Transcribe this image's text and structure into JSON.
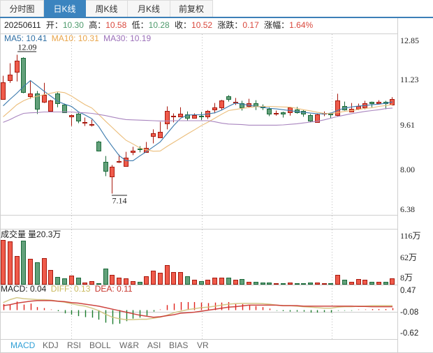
{
  "tabs": [
    {
      "label": "分时图",
      "active": false
    },
    {
      "label": "日K线",
      "active": true
    },
    {
      "label": "周K线",
      "active": false
    },
    {
      "label": "月K线",
      "active": false
    },
    {
      "label": "前复权",
      "active": false
    }
  ],
  "info": {
    "date": "20250611",
    "open": {
      "label": "开：",
      "value": "10.30",
      "color": "#4e9a6c"
    },
    "high": {
      "label": "高：",
      "value": "10.58",
      "color": "#d9473c"
    },
    "low": {
      "label": "低：",
      "value": "10.28",
      "color": "#4e9a6c"
    },
    "close": {
      "label": "收：",
      "value": "10.52",
      "color": "#d9473c"
    },
    "change": {
      "label": "涨跌：",
      "value": "0.17",
      "color": "#d9473c"
    },
    "change_pct": {
      "label": "涨幅：",
      "value": "1.64%",
      "color": "#d9473c"
    }
  },
  "ma_legend": [
    {
      "label": "MA5: 10.41",
      "color": "#2e6ea3"
    },
    {
      "label": "MA10: 10.31",
      "color": "#e9a54a"
    },
    {
      "label": "MA30: 10.19",
      "color": "#9a6fb8"
    }
  ],
  "price_axis": [
    "12.85",
    "11.23",
    "9.61",
    "8.00",
    "6.38"
  ],
  "volume_panel": {
    "title": "成交量",
    "value_label": "量20.3万",
    "axis": [
      "116万",
      "62万",
      "8万"
    ]
  },
  "macd_panel": {
    "macd": {
      "label": "MACD: 0.04",
      "color": "#222222"
    },
    "diff": {
      "label": "DIFF: 0.13",
      "color": "#c9b95c"
    },
    "dea": {
      "label": "DEA: 0.11",
      "color": "#c7352c"
    },
    "axis": [
      "0.47",
      "-0.08",
      "-0.62"
    ]
  },
  "indicator_tabs": [
    {
      "label": "MACD",
      "active": true
    },
    {
      "label": "KDJ",
      "active": false
    },
    {
      "label": "RSI",
      "active": false
    },
    {
      "label": "BOLL",
      "active": false
    },
    {
      "label": "W&R",
      "active": false
    },
    {
      "label": "ASI",
      "active": false
    },
    {
      "label": "BIAS",
      "active": false
    },
    {
      "label": "VR",
      "active": false
    }
  ],
  "colors": {
    "up_fill": "#ef5b4b",
    "up_stroke": "#a8190e",
    "down_fill": "#62a07a",
    "down_stroke": "#1b6a3a",
    "ma5": "#3a79ad",
    "ma10": "#ebbd7a",
    "ma30": "#a985bf",
    "diff": "#cfc27b",
    "dea": "#c9302a",
    "macd_up": "#e0231c",
    "macd_down": "#1d7d2e",
    "macd_up_light": "#f0a29c",
    "macd_down_light": "#9ccba5",
    "grid": "#bdbdbd",
    "frame": "#cfcfcf",
    "tab_line": "#3c7fb7",
    "marker_text": "#222222"
  },
  "chart_data": [
    {
      "type": "candlestick",
      "title": "日K线",
      "xlabel": "",
      "ylabel": "",
      "ylim": [
        6.38,
        12.85
      ],
      "yticks": [
        12.85,
        11.23,
        9.61,
        8.0,
        6.38
      ],
      "grid": false,
      "legend": [
        "MA5: 10.41",
        "MA10: 10.31",
        "MA30: 10.19"
      ],
      "ohlc_fields": [
        "open",
        "high",
        "low",
        "close"
      ],
      "ohlc": [
        [
          10.52,
          11.34,
          10.5,
          11.1
        ],
        [
          11.19,
          11.79,
          11.09,
          11.39
        ],
        [
          11.47,
          12.09,
          11.14,
          11.87
        ],
        [
          11.97,
          12.0,
          10.72,
          10.75
        ],
        [
          10.6,
          11.17,
          10.52,
          10.7
        ],
        [
          10.72,
          10.8,
          9.98,
          10.17
        ],
        [
          10.4,
          11.09,
          10.37,
          10.65
        ],
        [
          10.1,
          10.48,
          10.08,
          10.47
        ],
        [
          10.72,
          10.75,
          10.22,
          10.35
        ],
        [
          10.32,
          10.35,
          10.02,
          10.05
        ],
        [
          9.88,
          9.96,
          9.55,
          9.95
        ],
        [
          10.0,
          10.02,
          9.65,
          9.73
        ],
        [
          9.67,
          9.85,
          9.55,
          9.69
        ],
        [
          9.58,
          9.78,
          9.53,
          9.61
        ],
        [
          9.0,
          9.02,
          8.64,
          8.66
        ],
        [
          8.26,
          8.48,
          7.76,
          7.94
        ],
        [
          7.74,
          8.16,
          7.14,
          8.09
        ],
        [
          8.27,
          8.53,
          8.23,
          8.29
        ],
        [
          8.13,
          8.63,
          8.12,
          8.41
        ],
        [
          8.61,
          8.81,
          8.51,
          8.68
        ],
        [
          8.74,
          8.83,
          8.61,
          8.72
        ],
        [
          8.63,
          8.98,
          8.61,
          8.76
        ],
        [
          9.2,
          9.43,
          8.93,
          9.28
        ],
        [
          9.15,
          9.7,
          9.13,
          9.33
        ],
        [
          9.63,
          10.25,
          9.43,
          10.08
        ],
        [
          9.89,
          10.0,
          9.68,
          9.92
        ],
        [
          9.9,
          10.22,
          9.87,
          10.0
        ],
        [
          9.96,
          10.07,
          9.73,
          9.85
        ],
        [
          9.85,
          10.0,
          9.83,
          9.95
        ],
        [
          9.92,
          10.05,
          9.76,
          9.89
        ],
        [
          9.88,
          10.12,
          9.8,
          10.08
        ],
        [
          10.15,
          10.37,
          10.0,
          10.22
        ],
        [
          10.22,
          10.48,
          10.12,
          10.47
        ],
        [
          10.6,
          10.65,
          10.42,
          10.52
        ],
        [
          10.38,
          10.55,
          10.3,
          10.42
        ],
        [
          10.37,
          10.45,
          10.1,
          10.2
        ],
        [
          10.27,
          10.52,
          10.22,
          10.35
        ],
        [
          10.37,
          10.47,
          10.12,
          10.25
        ],
        [
          10.23,
          10.32,
          10.12,
          10.21
        ],
        [
          10.17,
          10.22,
          9.9,
          10.0
        ],
        [
          9.99,
          10.1,
          9.92,
          10.01
        ],
        [
          10.05,
          10.06,
          9.85,
          10.0
        ],
        [
          10.05,
          10.23,
          9.92,
          10.22
        ],
        [
          10.15,
          10.23,
          9.99,
          10.05
        ],
        [
          10.08,
          10.12,
          9.88,
          9.98
        ],
        [
          9.95,
          9.98,
          9.7,
          9.75
        ],
        [
          9.7,
          9.99,
          9.68,
          9.97
        ],
        [
          9.99,
          10.07,
          9.9,
          10.01
        ],
        [
          9.99,
          10.03,
          9.83,
          9.97
        ],
        [
          9.95,
          10.7,
          9.88,
          10.45
        ],
        [
          10.27,
          10.42,
          10.1,
          10.15
        ],
        [
          10.07,
          10.37,
          10.05,
          10.17
        ],
        [
          10.17,
          10.35,
          10.12,
          10.27
        ],
        [
          10.22,
          10.45,
          10.15,
          10.35
        ],
        [
          10.4,
          10.42,
          10.22,
          10.35
        ],
        [
          10.35,
          10.47,
          10.32,
          10.42
        ],
        [
          10.42,
          10.45,
          10.15,
          10.35
        ],
        [
          10.3,
          10.58,
          10.28,
          10.52
        ]
      ],
      "series": [
        {
          "name": "MA5",
          "color_key": "ma5",
          "values": [
            10.27,
            10.5,
            10.72,
            10.96,
            11.17,
            10.98,
            10.79,
            10.61,
            10.43,
            10.33,
            10.25,
            10.06,
            9.94,
            9.81,
            9.53,
            9.15,
            8.81,
            8.49,
            8.31,
            8.31,
            8.48,
            8.64,
            8.81,
            8.98,
            9.28,
            9.57,
            9.83,
            9.94,
            9.95,
            9.95,
            9.98,
            10.02,
            10.12,
            10.25,
            10.37,
            10.33,
            10.29,
            10.25,
            10.22,
            10.18,
            10.16,
            10.13,
            10.1,
            10.06,
            10.04,
            10.01,
            9.99,
            9.98,
            10.01,
            10.11,
            10.19,
            10.23,
            10.26,
            10.28,
            10.31,
            10.33,
            10.36,
            10.41
          ]
        },
        {
          "name": "MA10",
          "color_key": "ma10",
          "values": [
            9.88,
            10.09,
            10.31,
            10.45,
            10.55,
            10.61,
            10.67,
            10.72,
            10.77,
            10.74,
            10.62,
            10.46,
            10.31,
            10.19,
            9.96,
            9.72,
            9.49,
            9.26,
            9.04,
            8.91,
            8.77,
            8.7,
            8.65,
            8.66,
            8.82,
            8.97,
            9.12,
            9.27,
            9.41,
            9.56,
            9.69,
            9.83,
            9.97,
            10.1,
            10.14,
            10.18,
            10.21,
            10.24,
            10.25,
            10.25,
            10.24,
            10.23,
            10.22,
            10.18,
            10.13,
            10.09,
            10.04,
            10.0,
            9.99,
            10.03,
            10.07,
            10.1,
            10.14,
            10.18,
            10.2,
            10.25,
            10.28,
            10.31
          ]
        },
        {
          "name": "MA30",
          "color_key": "ma30",
          "values": [
            9.68,
            9.78,
            9.9,
            10.0,
            10.02,
            10.03,
            10.05,
            10.05,
            10.05,
            10.05,
            10.05,
            10.03,
            10.02,
            10.0,
            9.96,
            9.92,
            9.87,
            9.82,
            9.78,
            9.77,
            9.76,
            9.75,
            9.74,
            9.73,
            9.73,
            9.74,
            9.74,
            9.74,
            9.74,
            9.74,
            9.74,
            9.7,
            9.65,
            9.62,
            9.61,
            9.6,
            9.58,
            9.58,
            9.58,
            9.58,
            9.58,
            9.59,
            9.61,
            9.63,
            9.66,
            9.69,
            9.72,
            9.77,
            9.83,
            9.89,
            9.94,
            9.99,
            10.03,
            10.07,
            10.1,
            10.13,
            10.17,
            10.19
          ]
        }
      ],
      "annotations": [
        {
          "type": "max",
          "index": 2,
          "label": "12.09"
        },
        {
          "type": "min",
          "index": 16,
          "label": "7.14"
        }
      ]
    },
    {
      "type": "bar",
      "title": "成交量",
      "ylabel": "万",
      "ylim": [
        8,
        116
      ],
      "yticks": [
        "116万",
        "62万",
        "8万"
      ],
      "grid": false,
      "values": [
        94.4,
        92.1,
        63.0,
        93.0,
        57.9,
        51.1,
        59.3,
        37.0,
        23.3,
        19.6,
        25.1,
        21.0,
        12.4,
        14.2,
        10.1,
        38.8,
        27.4,
        21.0,
        19.6,
        15.1,
        12.8,
        23.7,
        35.6,
        30.6,
        45.6,
        31.9,
        31.9,
        23.7,
        17.8,
        15.1,
        17.8,
        21.9,
        21.9,
        21.9,
        16.9,
        19.2,
        13.7,
        13.7,
        12.4,
        11.4,
        10.1,
        10.1,
        11.4,
        10.1,
        10.1,
        11.4,
        11.4,
        10.1,
        10.1,
        27.4,
        16.9,
        13.7,
        19.2,
        16.9,
        12.8,
        13.7,
        13.7,
        20.3
      ]
    },
    {
      "type": "line",
      "title": "MACD",
      "ylim": [
        -0.62,
        0.47
      ],
      "yticks": [
        0.47,
        -0.08,
        -0.62
      ],
      "grid": false,
      "legend": [
        "MACD: 0.04",
        "DIFF: 0.13",
        "DEA: 0.11"
      ],
      "series": [
        {
          "name": "DIFF",
          "color_key": "diff",
          "values": [
            0.19,
            0.25,
            0.29,
            0.27,
            0.26,
            0.25,
            0.25,
            0.24,
            0.22,
            0.2,
            0.17,
            0.14,
            0.12,
            0.08,
            0.03,
            -0.04,
            -0.1,
            -0.13,
            -0.15,
            -0.15,
            -0.14,
            -0.14,
            -0.12,
            -0.1,
            -0.06,
            -0.01,
            0.02,
            0.05,
            0.07,
            0.09,
            0.1,
            0.12,
            0.14,
            0.16,
            0.17,
            0.175,
            0.175,
            0.175,
            0.17,
            0.16,
            0.14,
            0.13,
            0.13,
            0.12,
            0.11,
            0.1,
            0.09,
            0.08,
            0.08,
            0.1,
            0.11,
            0.11,
            0.12,
            0.12,
            0.13,
            0.13,
            0.13,
            0.13
          ]
        },
        {
          "name": "DEA",
          "color_key": "dea",
          "values": [
            0.13,
            0.15,
            0.18,
            0.2,
            0.22,
            0.23,
            0.23,
            0.23,
            0.22,
            0.21,
            0.19,
            0.18,
            0.16,
            0.14,
            0.12,
            0.09,
            0.06,
            0.03,
            0.0,
            -0.03,
            -0.06,
            -0.08,
            -0.1,
            -0.09,
            -0.07,
            -0.05,
            -0.02,
            -0.01,
            0.0,
            0.02,
            0.04,
            0.06,
            0.08,
            0.1,
            0.11,
            0.125,
            0.14,
            0.14,
            0.14,
            0.14,
            0.14,
            0.13,
            0.13,
            0.13,
            0.12,
            0.12,
            0.12,
            0.12,
            0.12,
            0.12,
            0.12,
            0.12,
            0.115,
            0.115,
            0.11,
            0.11,
            0.11,
            0.11
          ]
        }
      ],
      "histogram": {
        "name": "MACD",
        "values": [
          0.12,
          0.11,
          0.17,
          0.11,
          0.13,
          0.06,
          0.04,
          0.01,
          -0.02,
          -0.065,
          -0.09,
          -0.12,
          -0.14,
          -0.15,
          -0.19,
          -0.25,
          -0.28,
          -0.27,
          -0.22,
          -0.17,
          -0.15,
          -0.11,
          -0.03,
          0.01,
          0.1,
          0.13,
          0.16,
          0.16,
          0.16,
          0.15,
          0.14,
          0.15,
          0.15,
          0.16,
          0.12,
          0.12,
          0.1,
          0.08,
          0.06,
          0.03,
          -0.01,
          -0.02,
          -0.03,
          -0.03,
          -0.03,
          -0.05,
          -0.05,
          -0.04,
          -0.05,
          -0.01,
          -0.01,
          -0.01,
          0.0,
          0.01,
          0.02,
          0.02,
          0.02,
          0.04
        ]
      }
    }
  ]
}
